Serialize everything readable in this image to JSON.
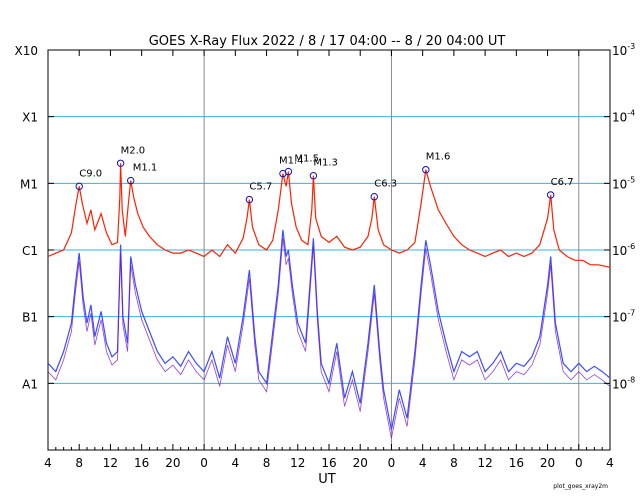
{
  "chart_data": {
    "type": "line",
    "title": "GOES X-Ray Flux   2022 /  8 / 17   04:00 --  8 / 20   04:00   UT",
    "xlabel": "UT",
    "credit": "plot_goes_xray2m",
    "x_range_hours": [
      0,
      72
    ],
    "x_tick_labels": [
      "4",
      "8",
      "12",
      "16",
      "20",
      "0",
      "4",
      "8",
      "12",
      "16",
      "20",
      "0",
      "4",
      "8",
      "12",
      "16",
      "20",
      "0",
      "4"
    ],
    "day_boundaries_hours": [
      20,
      44,
      68
    ],
    "y_scale": "log",
    "ylim_watts_m2": [
      1e-09,
      0.001
    ],
    "y_class_labels": [
      {
        "label": "X10",
        "exp": -3
      },
      {
        "label": "X1",
        "exp": -4
      },
      {
        "label": "M1",
        "exp": -5
      },
      {
        "label": "C1",
        "exp": -6
      },
      {
        "label": "B1",
        "exp": -7
      },
      {
        "label": "A1",
        "exp": -8
      }
    ],
    "y_right_labels": [
      {
        "base": "10",
        "sup": "-3",
        "exp": -3
      },
      {
        "base": "10",
        "sup": "-4",
        "exp": -4
      },
      {
        "base": "10",
        "sup": "-5",
        "exp": -5
      },
      {
        "base": "10",
        "sup": "-6",
        "exp": -6
      },
      {
        "base": "10",
        "sup": "-7",
        "exp": -7
      },
      {
        "base": "10",
        "sup": "-8",
        "exp": -8
      }
    ],
    "grid": "horizontal at class levels",
    "colors": {
      "long_channel": "#ff2000",
      "short_channel": "#3c4cff",
      "short_channel_secondary": "#7a10d0",
      "grid_line": "#38b0e0",
      "day_line": "#8c8c8c",
      "flare_marker": "#1010c0"
    },
    "flares": [
      {
        "label": "C9.0",
        "hour": 4.0,
        "flux": 9e-06
      },
      {
        "label": "M2.0",
        "hour": 9.3,
        "flux": 2e-05
      },
      {
        "label": "M1.1",
        "hour": 10.6,
        "flux": 1.1e-05
      },
      {
        "label": "C5.7",
        "hour": 25.8,
        "flux": 5.7e-06
      },
      {
        "label": "M1.4",
        "hour": 30.1,
        "flux": 1.4e-05
      },
      {
        "label": "M1.5",
        "hour": 30.8,
        "flux": 1.5e-05
      },
      {
        "label": "M1.3",
        "hour": 34.0,
        "flux": 1.3e-05
      },
      {
        "label": "C6.3",
        "hour": 41.8,
        "flux": 6.3e-06
      },
      {
        "label": "M1.6",
        "hour": 48.4,
        "flux": 1.6e-05
      },
      {
        "label": "C6.7",
        "hour": 64.4,
        "flux": 6.7e-06
      }
    ],
    "series": [
      {
        "channel": "long",
        "points": [
          [
            0,
            8e-07
          ],
          [
            1,
            9e-07
          ],
          [
            2,
            1e-06
          ],
          [
            3,
            1.8e-06
          ],
          [
            3.6,
            5e-06
          ],
          [
            4.0,
            9e-06
          ],
          [
            4.4,
            5e-06
          ],
          [
            5,
            2.5e-06
          ],
          [
            5.5,
            4e-06
          ],
          [
            6,
            2e-06
          ],
          [
            6.8,
            3.5e-06
          ],
          [
            7.5,
            1.8e-06
          ],
          [
            8.2,
            1.2e-06
          ],
          [
            8.9,
            1.3e-06
          ],
          [
            9.2,
            6e-06
          ],
          [
            9.3,
            2e-05
          ],
          [
            9.5,
            4e-06
          ],
          [
            9.9,
            1.6e-06
          ],
          [
            10.3,
            5e-06
          ],
          [
            10.6,
            1.1e-05
          ],
          [
            11,
            6e-06
          ],
          [
            11.5,
            3.5e-06
          ],
          [
            12.2,
            2.2e-06
          ],
          [
            13,
            1.6e-06
          ],
          [
            14,
            1.2e-06
          ],
          [
            15,
            1e-06
          ],
          [
            16,
            9e-07
          ],
          [
            17,
            9e-07
          ],
          [
            18,
            1e-06
          ],
          [
            19,
            9e-07
          ],
          [
            20,
            8e-07
          ],
          [
            21,
            1e-06
          ],
          [
            22,
            8e-07
          ],
          [
            23,
            1.2e-06
          ],
          [
            24,
            9e-07
          ],
          [
            25,
            1.5e-06
          ],
          [
            25.5,
            3e-06
          ],
          [
            25.8,
            5.7e-06
          ],
          [
            26.2,
            2.2e-06
          ],
          [
            27,
            1.2e-06
          ],
          [
            28,
            1e-06
          ],
          [
            28.8,
            1.4e-06
          ],
          [
            29.5,
            4e-06
          ],
          [
            30.1,
            1.4e-05
          ],
          [
            30.5,
            9e-06
          ],
          [
            30.8,
            1.5e-05
          ],
          [
            31.2,
            5e-06
          ],
          [
            31.8,
            2.2e-06
          ],
          [
            32.5,
            1.4e-06
          ],
          [
            33.3,
            1.2e-06
          ],
          [
            33.8,
            4e-06
          ],
          [
            34.0,
            1.3e-05
          ],
          [
            34.3,
            3e-06
          ],
          [
            35,
            1.6e-06
          ],
          [
            36,
            1.3e-06
          ],
          [
            37,
            1.6e-06
          ],
          [
            38,
            1.1e-06
          ],
          [
            39,
            1e-06
          ],
          [
            40,
            1.1e-06
          ],
          [
            41,
            1.6e-06
          ],
          [
            41.5,
            3e-06
          ],
          [
            41.8,
            6.3e-06
          ],
          [
            42.3,
            2e-06
          ],
          [
            43,
            1.2e-06
          ],
          [
            44,
            1e-06
          ],
          [
            45,
            9e-07
          ],
          [
            46,
            1e-06
          ],
          [
            47,
            1.3e-06
          ],
          [
            47.8,
            5e-06
          ],
          [
            48.4,
            1.6e-05
          ],
          [
            49,
            9e-06
          ],
          [
            50,
            4e-06
          ],
          [
            51,
            2.5e-06
          ],
          [
            52,
            1.6e-06
          ],
          [
            53,
            1.2e-06
          ],
          [
            54,
            1e-06
          ],
          [
            55,
            9e-07
          ],
          [
            56,
            8e-07
          ],
          [
            57,
            9e-07
          ],
          [
            58,
            1e-06
          ],
          [
            59,
            8e-07
          ],
          [
            60,
            9e-07
          ],
          [
            61,
            8e-07
          ],
          [
            62,
            9e-07
          ],
          [
            63,
            1.2e-06
          ],
          [
            64.0,
            3e-06
          ],
          [
            64.4,
            6.7e-06
          ],
          [
            64.8,
            2e-06
          ],
          [
            65.5,
            1e-06
          ],
          [
            66.5,
            8e-07
          ],
          [
            67.5,
            7e-07
          ],
          [
            68.5,
            7e-07
          ],
          [
            69.5,
            6e-07
          ],
          [
            70.5,
            6e-07
          ],
          [
            72,
            5.5e-07
          ]
        ]
      },
      {
        "channel": "short",
        "points": [
          [
            0,
            2e-08
          ],
          [
            1,
            1.5e-08
          ],
          [
            2,
            3e-08
          ],
          [
            3,
            8e-08
          ],
          [
            3.5,
            3e-07
          ],
          [
            4.0,
            9e-07
          ],
          [
            4.5,
            2e-07
          ],
          [
            5,
            8e-08
          ],
          [
            5.5,
            1.5e-07
          ],
          [
            6,
            5e-08
          ],
          [
            6.8,
            1.2e-07
          ],
          [
            7.5,
            4e-08
          ],
          [
            8.2,
            2.5e-08
          ],
          [
            8.9,
            3e-08
          ],
          [
            9.3,
            1.2e-06
          ],
          [
            9.6,
            1e-07
          ],
          [
            10.2,
            4e-08
          ],
          [
            10.6,
            8e-07
          ],
          [
            11.2,
            3e-07
          ],
          [
            12,
            1.2e-07
          ],
          [
            13,
            6e-08
          ],
          [
            14,
            3e-08
          ],
          [
            15,
            2e-08
          ],
          [
            16,
            2.5e-08
          ],
          [
            17,
            1.8e-08
          ],
          [
            18,
            3e-08
          ],
          [
            19,
            2e-08
          ],
          [
            20,
            1.5e-08
          ],
          [
            21,
            3e-08
          ],
          [
            22,
            1.2e-08
          ],
          [
            23,
            5e-08
          ],
          [
            24,
            2e-08
          ],
          [
            25,
            1e-07
          ],
          [
            25.8,
            5e-07
          ],
          [
            26.5,
            5e-08
          ],
          [
            27,
            1.5e-08
          ],
          [
            28,
            1e-08
          ],
          [
            28.8,
            6e-08
          ],
          [
            29.5,
            3e-07
          ],
          [
            30.1,
            2e-06
          ],
          [
            30.5,
            8e-07
          ],
          [
            30.8,
            1e-06
          ],
          [
            31.3,
            3e-07
          ],
          [
            32,
            8e-08
          ],
          [
            33,
            4e-08
          ],
          [
            34.0,
            1.5e-06
          ],
          [
            34.5,
            1.2e-07
          ],
          [
            35,
            2e-08
          ],
          [
            36,
            1e-08
          ],
          [
            37,
            4e-08
          ],
          [
            38,
            6e-09
          ],
          [
            39,
            1.5e-08
          ],
          [
            40,
            5e-09
          ],
          [
            41,
            4e-08
          ],
          [
            41.8,
            3e-07
          ],
          [
            42.5,
            3e-08
          ],
          [
            43,
            8e-09
          ],
          [
            44,
            2e-09
          ],
          [
            45,
            8e-09
          ],
          [
            46,
            3e-09
          ],
          [
            47,
            3e-08
          ],
          [
            47.8,
            3e-07
          ],
          [
            48.4,
            1.4e-06
          ],
          [
            49,
            6e-07
          ],
          [
            50,
            1.2e-07
          ],
          [
            51,
            4e-08
          ],
          [
            52,
            1.5e-08
          ],
          [
            53,
            3e-08
          ],
          [
            54,
            2.5e-08
          ],
          [
            55,
            3e-08
          ],
          [
            56,
            1.5e-08
          ],
          [
            57,
            2e-08
          ],
          [
            58,
            3e-08
          ],
          [
            59,
            1.5e-08
          ],
          [
            60,
            2e-08
          ],
          [
            61,
            1.8e-08
          ],
          [
            62,
            2.5e-08
          ],
          [
            63,
            5e-08
          ],
          [
            64.0,
            3e-07
          ],
          [
            64.4,
            8e-07
          ],
          [
            65,
            8e-08
          ],
          [
            66,
            2e-08
          ],
          [
            67,
            1.5e-08
          ],
          [
            68,
            2e-08
          ],
          [
            69,
            1.5e-08
          ],
          [
            70,
            1.8e-08
          ],
          [
            71,
            1.5e-08
          ],
          [
            72,
            1.2e-08
          ]
        ]
      }
    ]
  }
}
